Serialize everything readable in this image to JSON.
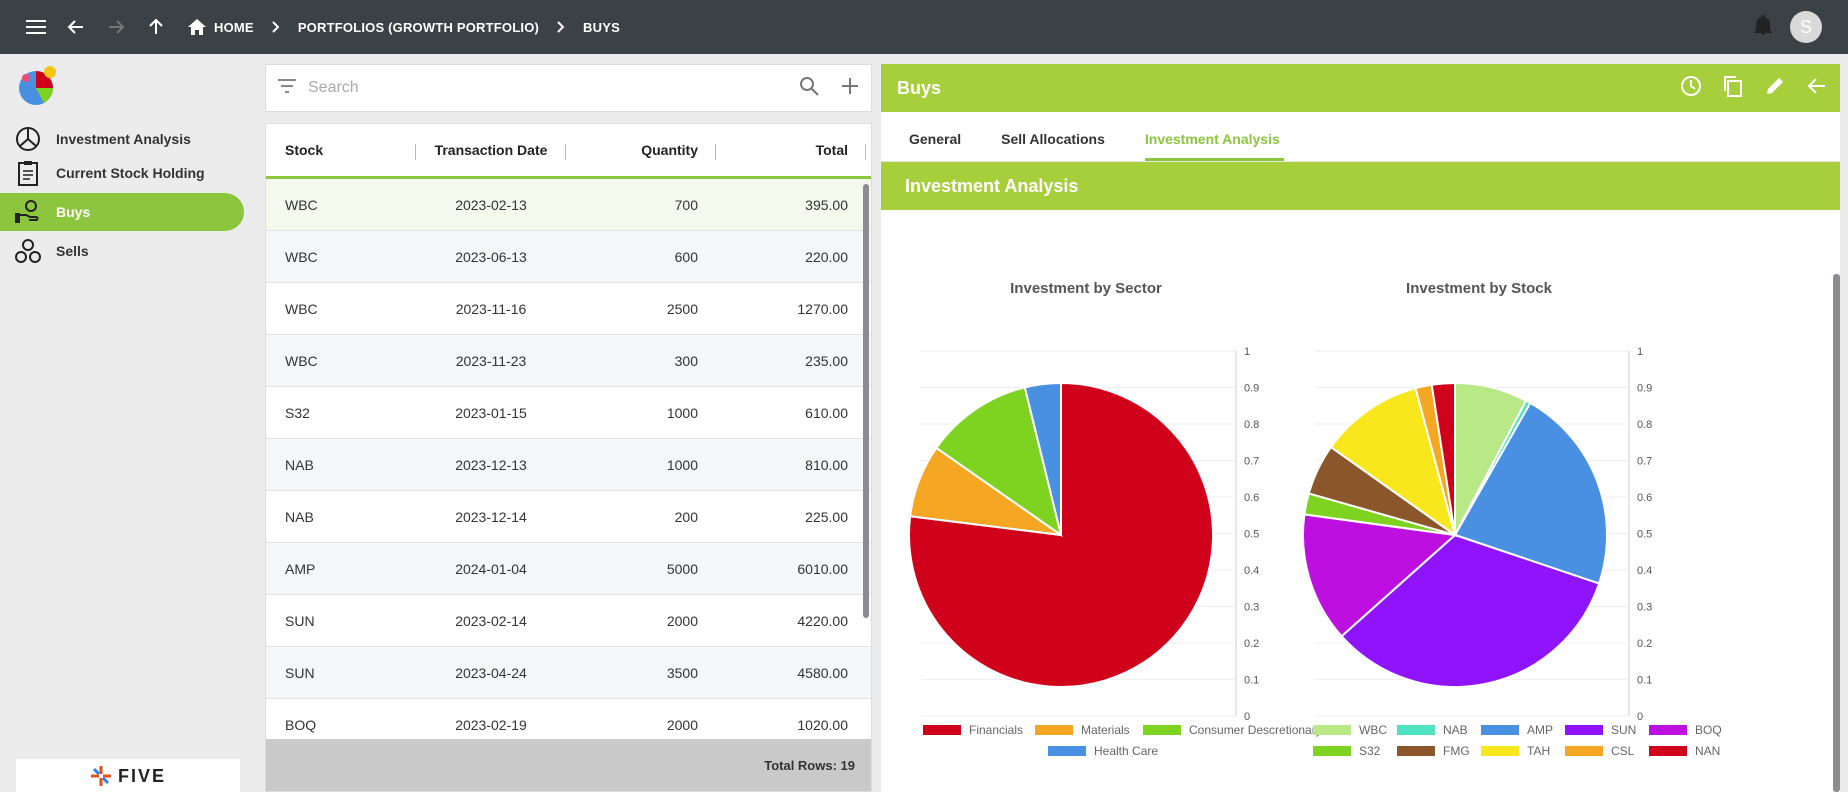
{
  "breadcrumb": {
    "home": "HOME",
    "portfolio": "PORTFOLIOS (GROWTH PORTFOLIO)",
    "current": "BUYS"
  },
  "user": {
    "initial": "S"
  },
  "sidebar": {
    "items": [
      {
        "label": "Investment Analysis",
        "icon": "pie-chart-icon",
        "active": false
      },
      {
        "label": "Current Stock Holding",
        "icon": "clipboard-icon",
        "active": false
      },
      {
        "label": "Buys",
        "icon": "hand-money-icon",
        "active": true
      },
      {
        "label": "Sells",
        "icon": "coins-icon",
        "active": false
      }
    ],
    "footer_logo": "FIVE"
  },
  "search": {
    "placeholder": "Search",
    "value": ""
  },
  "table": {
    "columns": [
      "Stock",
      "Transaction Date",
      "Quantity",
      "Total"
    ],
    "rows": [
      [
        "WBC",
        "2023-02-13",
        "700",
        "395.00"
      ],
      [
        "WBC",
        "2023-06-13",
        "600",
        "220.00"
      ],
      [
        "WBC",
        "2023-11-16",
        "2500",
        "1270.00"
      ],
      [
        "WBC",
        "2023-11-23",
        "300",
        "235.00"
      ],
      [
        "S32",
        "2023-01-15",
        "1000",
        "610.00"
      ],
      [
        "NAB",
        "2023-12-13",
        "1000",
        "810.00"
      ],
      [
        "NAB",
        "2023-12-14",
        "200",
        "225.00"
      ],
      [
        "AMP",
        "2024-01-04",
        "5000",
        "6010.00"
      ],
      [
        "SUN",
        "2023-02-14",
        "2000",
        "4220.00"
      ],
      [
        "SUN",
        "2023-04-24",
        "3500",
        "4580.00"
      ],
      [
        "BOQ",
        "2023-02-19",
        "2000",
        "1020.00"
      ]
    ],
    "footer": "Total Rows: 19"
  },
  "panel": {
    "title": "Buys",
    "tabs": [
      "General",
      "Sell Allocations",
      "Investment Analysis"
    ],
    "active_tab": "Investment Analysis",
    "section_title": "Investment Analysis"
  },
  "colors": {
    "accent": "#a6cf3b",
    "topbar": "#3c4146"
  },
  "chart_data": [
    {
      "type": "pie",
      "title": "Investment by Sector",
      "categories": [
        "Financials",
        "Materials",
        "Consumer Descretionary",
        "Health Care"
      ],
      "values": [
        74.5,
        7.5,
        11.1,
        3.7
      ],
      "colors": [
        "#d0021b",
        "#f5a623",
        "#7ed321",
        "#4a90e2"
      ],
      "axis_ticks": [
        "0",
        "0.1",
        "0.2",
        "0.3",
        "0.4",
        "0.5",
        "0.6",
        "0.7",
        "0.8",
        "0.9",
        "1"
      ],
      "legend_position": "bottom"
    },
    {
      "type": "pie",
      "title": "Investment by Stock",
      "categories": [
        "WBC",
        "NAB",
        "AMP",
        "SUN",
        "BOQ",
        "S32",
        "FMG",
        "TAH",
        "CSL",
        "NAN"
      ],
      "values": [
        7.6,
        0.5,
        21.5,
        32.6,
        13.5,
        2.2,
        5.3,
        10.8,
        1.7,
        2.4
      ],
      "colors": [
        "#b8e986",
        "#50e3c2",
        "#4a90e2",
        "#9013fe",
        "#bd10e0",
        "#7ed321",
        "#8b572a",
        "#f8e71c",
        "#f5a623",
        "#d0021b"
      ],
      "axis_ticks": [
        "0",
        "0.1",
        "0.2",
        "0.3",
        "0.4",
        "0.5",
        "0.6",
        "0.7",
        "0.8",
        "0.9",
        "1"
      ],
      "legend_position": "bottom"
    }
  ]
}
